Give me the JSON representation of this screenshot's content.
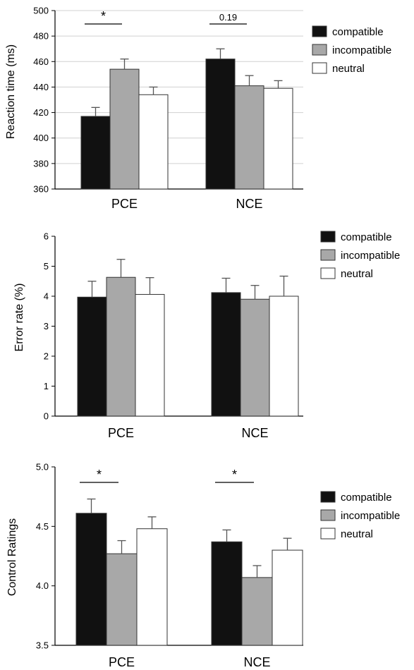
{
  "colors": {
    "compatible": "#111111",
    "incompatible": "#a8a8a8",
    "neutral": "#ffffff"
  },
  "chart_data": [
    {
      "type": "bar",
      "ylabel": "Reaction time (ms)",
      "categories": [
        "PCE",
        "NCE"
      ],
      "ylim": [
        360,
        500
      ],
      "yticks": [
        "360",
        "380",
        "400",
        "420",
        "440",
        "460",
        "480",
        "500"
      ],
      "grid": true,
      "legend_position": "top-right",
      "series": [
        {
          "name": "compatible",
          "values": [
            417,
            462
          ],
          "errors": [
            7,
            8
          ]
        },
        {
          "name": "incompatible",
          "values": [
            454,
            441
          ],
          "errors": [
            8,
            8
          ]
        },
        {
          "name": "neutral",
          "values": [
            434,
            439
          ],
          "errors": [
            6,
            6
          ]
        }
      ],
      "annotations": [
        {
          "text": "*",
          "category": "PCE"
        },
        {
          "text": "0.19",
          "category": "NCE"
        }
      ]
    },
    {
      "type": "bar",
      "ylabel": "Error rate (%)",
      "categories": [
        "PCE",
        "NCE"
      ],
      "ylim": [
        0,
        6
      ],
      "yticks": [
        "0",
        "1",
        "2",
        "3",
        "4",
        "5",
        "6"
      ],
      "grid": false,
      "legend_position": "top-right",
      "series": [
        {
          "name": "compatible",
          "values": [
            3.97,
            4.12
          ],
          "errors": [
            0.53,
            0.48
          ]
        },
        {
          "name": "incompatible",
          "values": [
            4.63,
            3.9
          ],
          "errors": [
            0.6,
            0.46
          ]
        },
        {
          "name": "neutral",
          "values": [
            4.06,
            4.0
          ],
          "errors": [
            0.56,
            0.67
          ]
        }
      ],
      "annotations": []
    },
    {
      "type": "bar",
      "ylabel": "Control Ratings",
      "categories": [
        "PCE",
        "NCE"
      ],
      "ylim": [
        3.5,
        5.0
      ],
      "yticks": [
        "3.5",
        "4.0",
        "4.5",
        "5.0"
      ],
      "grid": false,
      "legend_position": "right",
      "series": [
        {
          "name": "compatible",
          "values": [
            4.61,
            4.37
          ],
          "errors": [
            0.12,
            0.1
          ]
        },
        {
          "name": "incompatible",
          "values": [
            4.27,
            4.07
          ],
          "errors": [
            0.11,
            0.1
          ]
        },
        {
          "name": "neutral",
          "values": [
            4.48,
            4.3
          ],
          "errors": [
            0.1,
            0.1
          ]
        }
      ],
      "annotations": [
        {
          "text": "*",
          "category": "PCE"
        },
        {
          "text": "*",
          "category": "NCE"
        }
      ]
    }
  ]
}
